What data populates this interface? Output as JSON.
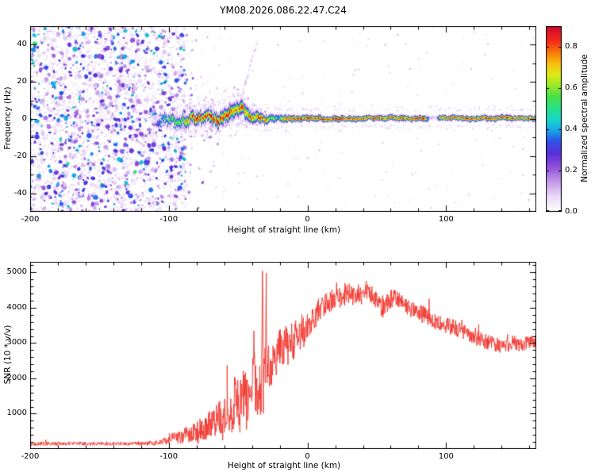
{
  "seed": 20268622,
  "chart_data": [
    {
      "type": "heatmap",
      "title": "YM08.2026.086.22.47.C24",
      "xlabel": "Height of straight line (km)",
      "ylabel": "Frequency (Hz)",
      "xlim": [
        -200,
        165
      ],
      "ylim": [
        -50,
        50
      ],
      "x_ticks": [
        -200,
        -100,
        0,
        100
      ],
      "x_minor_step": 20,
      "y_ticks": [
        -40,
        -20,
        0,
        20,
        40
      ],
      "y_minor_step": 10,
      "colorbar": {
        "label": "Normalized spectral amplitude",
        "range": [
          0.0,
          0.9
        ],
        "ticks": [
          0.0,
          0.2,
          0.4,
          0.6,
          0.8
        ]
      },
      "colormap": [
        [
          0,
          "#ffffff"
        ],
        [
          0.08,
          "#ead9f7"
        ],
        [
          0.16,
          "#c49ae8"
        ],
        [
          0.24,
          "#9050dc"
        ],
        [
          0.31,
          "#5b2fd8"
        ],
        [
          0.38,
          "#2f52e8"
        ],
        [
          0.44,
          "#18a8e8"
        ],
        [
          0.5,
          "#18d8c8"
        ],
        [
          0.56,
          "#28e08a"
        ],
        [
          0.62,
          "#48e048"
        ],
        [
          0.68,
          "#98e828"
        ],
        [
          0.74,
          "#e0e818"
        ],
        [
          0.8,
          "#f8c010"
        ],
        [
          0.86,
          "#f87808"
        ],
        [
          0.92,
          "#f52c18"
        ],
        [
          1,
          "#cc0a30"
        ]
      ],
      "noise_region": {
        "x_end": -88,
        "description": "dense purple speckle noise fills region left of -88 km"
      },
      "band": {
        "x_start": -108,
        "center": [
          [
            -108,
            -1
          ],
          [
            -103,
            0.5
          ],
          [
            -100,
            -0.5
          ],
          [
            -97,
            -2
          ],
          [
            -93,
            -1
          ],
          [
            -90,
            0
          ],
          [
            -87,
            -1.5
          ],
          [
            -84,
            0.5
          ],
          [
            -81,
            -1
          ],
          [
            -78,
            1
          ],
          [
            -75,
            0
          ],
          [
            -72,
            1.5
          ],
          [
            -69,
            0
          ],
          [
            -66,
            -0.5
          ],
          [
            -63,
            1
          ],
          [
            -60,
            2
          ],
          [
            -57,
            3
          ],
          [
            -54,
            4
          ],
          [
            -51,
            5
          ],
          [
            -48,
            5.5
          ],
          [
            -45,
            4
          ],
          [
            -42,
            2.5
          ],
          [
            -39,
            1.5
          ],
          [
            -36,
            1
          ],
          [
            -33,
            0.5
          ],
          [
            -30,
            0
          ],
          [
            -27,
            0.5
          ],
          [
            -24,
            0
          ],
          [
            -20,
            0.5
          ],
          [
            -15,
            0
          ],
          [
            -10,
            0.5
          ],
          [
            0,
            0.5
          ],
          [
            20,
            0.6
          ],
          [
            40,
            0.5
          ],
          [
            60,
            0.7
          ],
          [
            80,
            0.5
          ],
          [
            100,
            0.7
          ],
          [
            120,
            0.5
          ],
          [
            140,
            0.7
          ],
          [
            165,
            0.5
          ]
        ],
        "width": [
          [
            -108,
            2.5
          ],
          [
            -95,
            3
          ],
          [
            -85,
            3.5
          ],
          [
            -70,
            3.5
          ],
          [
            -55,
            4.5
          ],
          [
            -45,
            4
          ],
          [
            -35,
            3
          ],
          [
            -28,
            2.5
          ],
          [
            -20,
            2.2
          ],
          [
            -10,
            1.9
          ],
          [
            0,
            1.8
          ],
          [
            30,
            1.7
          ],
          [
            60,
            1.7
          ],
          [
            100,
            1.6
          ],
          [
            140,
            1.7
          ],
          [
            165,
            1.7
          ]
        ],
        "intensity": [
          [
            -108,
            0.45
          ],
          [
            -104,
            0.55
          ],
          [
            -100,
            0.65
          ],
          [
            -95,
            0.7
          ],
          [
            -90,
            0.8
          ],
          [
            -85,
            0.95
          ],
          [
            -60,
            0.95
          ],
          [
            -50,
            0.9
          ],
          [
            -40,
            0.95
          ],
          [
            -30,
            0.9
          ],
          [
            -27,
            0.6
          ],
          [
            -25,
            0.8
          ],
          [
            -21,
            0.45
          ],
          [
            -19,
            0.8
          ],
          [
            -15,
            0.95
          ],
          [
            85,
            0.95
          ],
          [
            88,
            0.15
          ],
          [
            93,
            0.1
          ],
          [
            96,
            0.9
          ],
          [
            100,
            0.95
          ],
          [
            165,
            0.95
          ]
        ],
        "wiggle_scale": [
          [
            -110,
            2.2
          ],
          [
            -60,
            1.8
          ],
          [
            -40,
            1.2
          ],
          [
            -20,
            0.7
          ],
          [
            0,
            0.45
          ],
          [
            165,
            0.35
          ]
        ],
        "halo_spread": [
          [
            -112,
            6
          ],
          [
            -90,
            10
          ],
          [
            -75,
            16
          ],
          [
            -55,
            20
          ],
          [
            -40,
            12
          ],
          [
            -30,
            6
          ],
          [
            -26,
            4
          ]
        ]
      }
    },
    {
      "type": "line",
      "xlabel": "Height of straight line (km)",
      "ylabel": "SNR (10 * v/v)",
      "xlim": [
        -200,
        165
      ],
      "ylim": [
        0,
        5300
      ],
      "x_ticks": [
        -200,
        -100,
        0,
        100
      ],
      "x_minor_step": 20,
      "y_ticks": [
        1000,
        2000,
        3000,
        4000,
        5000
      ],
      "y_minor_step": 200,
      "series": [
        {
          "name": "SNR",
          "color": "#f23830",
          "envelope": [
            [
              -200,
              150
            ],
            [
              -170,
              155
            ],
            [
              -140,
              155
            ],
            [
              -120,
              160
            ],
            [
              -110,
              170
            ],
            [
              -105,
              200
            ],
            [
              -100,
              260
            ],
            [
              -96,
              380
            ],
            [
              -92,
              300
            ],
            [
              -88,
              420
            ],
            [
              -85,
              350
            ],
            [
              -82,
              550
            ],
            [
              -79,
              430
            ],
            [
              -76,
              650
            ],
            [
              -73,
              500
            ],
            [
              -70,
              800
            ],
            [
              -67,
              600
            ],
            [
              -64,
              1000
            ],
            [
              -61,
              750
            ],
            [
              -58,
              1200
            ],
            [
              -55,
              900
            ],
            [
              -52,
              1500
            ],
            [
              -49,
              1100
            ],
            [
              -46,
              1700
            ],
            [
              -44,
              1250
            ],
            [
              -42,
              1900
            ],
            [
              -40,
              1350
            ],
            [
              -38.4,
              2950
            ],
            [
              -37.5,
              1250
            ],
            [
              -36,
              1550
            ],
            [
              -34.5,
              1250
            ],
            [
              -33.3,
              1550
            ],
            [
              -32.5,
              5100
            ],
            [
              -31.8,
              1650
            ],
            [
              -30.6,
              2200
            ],
            [
              -29.7,
              4450
            ],
            [
              -29,
              1750
            ],
            [
              -28,
              2400
            ],
            [
              -26,
              2150
            ],
            [
              -24,
              2700
            ],
            [
              -22,
              2450
            ],
            [
              -20,
              2900
            ],
            [
              -18,
              2650
            ],
            [
              -16,
              3100
            ],
            [
              -14,
              2850
            ],
            [
              -12,
              3200
            ],
            [
              -10,
              2950
            ],
            [
              -8,
              3300
            ],
            [
              -6,
              3150
            ],
            [
              -4,
              3400
            ],
            [
              -2,
              3250
            ],
            [
              0,
              3500
            ],
            [
              3,
              3650
            ],
            [
              6,
              3800
            ],
            [
              9,
              3950
            ],
            [
              12,
              4050
            ],
            [
              15,
              4150
            ],
            [
              18,
              4250
            ],
            [
              21,
              4300
            ],
            [
              24,
              4250
            ],
            [
              27,
              4350
            ],
            [
              30,
              4400
            ],
            [
              33,
              4300
            ],
            [
              36,
              4450
            ],
            [
              39,
              4350
            ],
            [
              42,
              4500
            ],
            [
              45,
              4400
            ],
            [
              48,
              4300
            ],
            [
              51,
              4100
            ],
            [
              54,
              3950
            ],
            [
              57,
              4100
            ],
            [
              60,
              4250
            ],
            [
              63,
              4300
            ],
            [
              66,
              4200
            ],
            [
              69,
              4100
            ],
            [
              72,
              4000
            ],
            [
              75,
              3950
            ],
            [
              78,
              3900
            ],
            [
              81,
              3850
            ],
            [
              84,
              3800
            ],
            [
              87,
              3750
            ],
            [
              90,
              3650
            ],
            [
              93,
              3600
            ],
            [
              96,
              3550
            ],
            [
              100,
              3500
            ],
            [
              105,
              3450
            ],
            [
              110,
              3350
            ],
            [
              115,
              3250
            ],
            [
              120,
              3150
            ],
            [
              125,
              3080
            ],
            [
              130,
              3020
            ],
            [
              135,
              2960
            ],
            [
              140,
              2920
            ],
            [
              145,
              2960
            ],
            [
              150,
              3000
            ],
            [
              155,
              2950
            ],
            [
              160,
              3000
            ],
            [
              165,
              3050
            ]
          ],
          "noise_amp": [
            [
              -200,
              55
            ],
            [
              -120,
              55
            ],
            [
              -110,
              70
            ],
            [
              -100,
              120
            ],
            [
              -90,
              200
            ],
            [
              -80,
              300
            ],
            [
              -70,
              420
            ],
            [
              -60,
              550
            ],
            [
              -50,
              700
            ],
            [
              -45,
              800
            ],
            [
              -40,
              750
            ],
            [
              -35,
              650
            ],
            [
              -30,
              700
            ],
            [
              -25,
              600
            ],
            [
              -20,
              550
            ],
            [
              -15,
              500
            ],
            [
              -10,
              450
            ],
            [
              -5,
              420
            ],
            [
              0,
              400
            ],
            [
              10,
              350
            ],
            [
              20,
              300
            ],
            [
              30,
              280
            ],
            [
              40,
              280
            ],
            [
              50,
              270
            ],
            [
              60,
              260
            ],
            [
              70,
              250
            ],
            [
              80,
              250
            ],
            [
              90,
              240
            ],
            [
              100,
              230
            ],
            [
              110,
              230
            ],
            [
              120,
              220
            ],
            [
              130,
              220
            ],
            [
              140,
              210
            ],
            [
              150,
              210
            ],
            [
              165,
              200
            ]
          ]
        }
      ]
    }
  ]
}
